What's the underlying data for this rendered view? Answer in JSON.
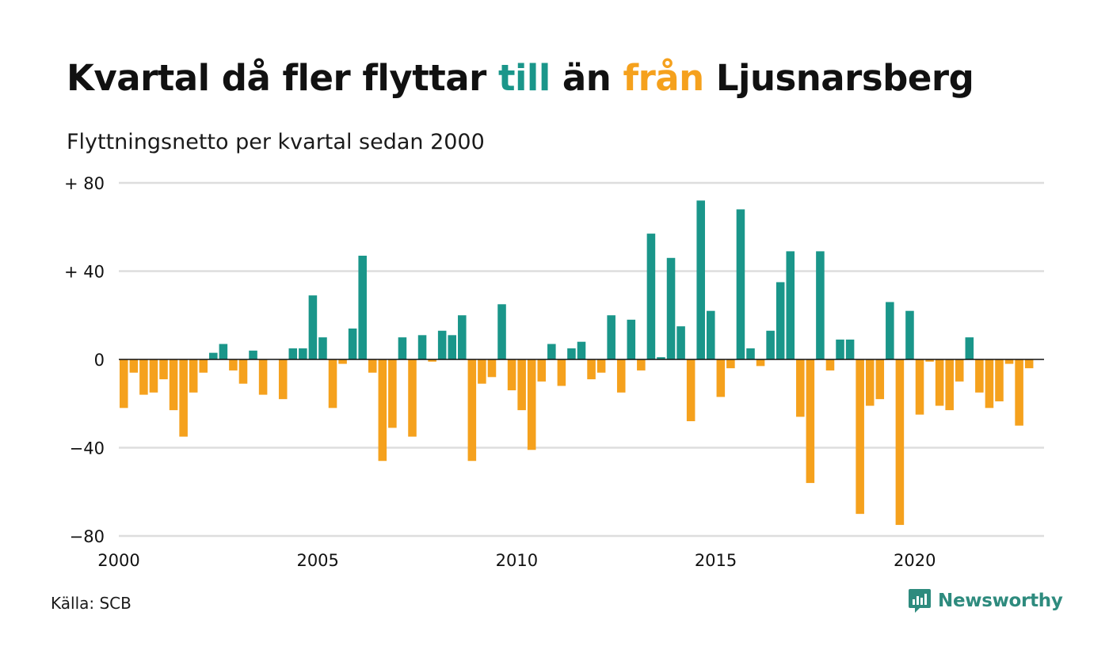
{
  "title": {
    "part1": "Kvartal då fler flyttar ",
    "till": "till",
    "part2": " än ",
    "fran": "från",
    "part3": " Ljusnarsberg"
  },
  "subtitle": "Flyttningsnetto per kvartal sedan 2000",
  "source": "Källa: SCB",
  "logo": {
    "text": "Newsworthy",
    "icon": "newsworthy-chart-icon"
  },
  "colors": {
    "positive": "#1a968a",
    "negative": "#f5a11d",
    "grid": "#dddddd",
    "text": "#111111"
  },
  "chart_data": {
    "type": "bar",
    "xlim": [
      2000,
      2023.25
    ],
    "ylim": [
      -80,
      80
    ],
    "y_ticks": [
      {
        "value": 80,
        "label": "+ 80"
      },
      {
        "value": 40,
        "label": "+ 40"
      },
      {
        "value": 0,
        "label": "0"
      },
      {
        "value": -40,
        "label": "−40"
      },
      {
        "value": -80,
        "label": "−80"
      }
    ],
    "x_ticks": [
      {
        "value": 2000,
        "label": "2000"
      },
      {
        "value": 2005,
        "label": "2005"
      },
      {
        "value": 2010,
        "label": "2010"
      },
      {
        "value": 2015,
        "label": "2015"
      },
      {
        "value": 2020,
        "label": "2020"
      }
    ],
    "grid": true,
    "categories": [
      "2000 Q1",
      "2000 Q2",
      "2000 Q3",
      "2000 Q4",
      "2001 Q1",
      "2001 Q2",
      "2001 Q3",
      "2001 Q4",
      "2002 Q1",
      "2002 Q2",
      "2002 Q3",
      "2002 Q4",
      "2003 Q1",
      "2003 Q2",
      "2003 Q3",
      "2003 Q4",
      "2004 Q1",
      "2004 Q2",
      "2004 Q3",
      "2004 Q4",
      "2005 Q1",
      "2005 Q2",
      "2005 Q3",
      "2005 Q4",
      "2006 Q1",
      "2006 Q2",
      "2006 Q3",
      "2006 Q4",
      "2007 Q1",
      "2007 Q2",
      "2007 Q3",
      "2007 Q4",
      "2008 Q1",
      "2008 Q2",
      "2008 Q3",
      "2008 Q4",
      "2009 Q1",
      "2009 Q2",
      "2009 Q3",
      "2009 Q4",
      "2010 Q1",
      "2010 Q2",
      "2010 Q3",
      "2010 Q4",
      "2011 Q1",
      "2011 Q2",
      "2011 Q3",
      "2011 Q4",
      "2012 Q1",
      "2012 Q2",
      "2012 Q3",
      "2012 Q4",
      "2013 Q1",
      "2013 Q2",
      "2013 Q3",
      "2013 Q4",
      "2014 Q1",
      "2014 Q2",
      "2014 Q3",
      "2014 Q4",
      "2015 Q1",
      "2015 Q2",
      "2015 Q3",
      "2015 Q4",
      "2016 Q1",
      "2016 Q2",
      "2016 Q3",
      "2016 Q4",
      "2017 Q1",
      "2017 Q2",
      "2017 Q3",
      "2017 Q4",
      "2018 Q1",
      "2018 Q2",
      "2018 Q3",
      "2018 Q4",
      "2019 Q1",
      "2019 Q2",
      "2019 Q3",
      "2019 Q4",
      "2020 Q1",
      "2020 Q2",
      "2020 Q3",
      "2020 Q4",
      "2021 Q1",
      "2021 Q2",
      "2021 Q3",
      "2021 Q4",
      "2022 Q1",
      "2022 Q2",
      "2022 Q3",
      "2022 Q4",
      "2023 Q1"
    ],
    "values": [
      -22,
      -6,
      -16,
      -15,
      -9,
      -23,
      -35,
      -15,
      -6,
      3,
      7,
      -5,
      -11,
      4,
      -16,
      0,
      -18,
      5,
      5,
      29,
      10,
      -22,
      -2,
      14,
      47,
      -6,
      -46,
      -31,
      10,
      -35,
      11,
      -1,
      13,
      11,
      20,
      -46,
      -11,
      -8,
      25,
      -14,
      -23,
      -41,
      -10,
      7,
      -12,
      5,
      8,
      -9,
      -6,
      20,
      -15,
      18,
      -5,
      57,
      1,
      46,
      15,
      -28,
      72,
      22,
      -17,
      -4,
      68,
      5,
      -3,
      13,
      35,
      49,
      -26,
      -56,
      49,
      -5,
      9,
      9,
      -70,
      -21,
      -18,
      26,
      -75,
      22,
      -25,
      -1,
      -21,
      -23,
      -10,
      10,
      -15,
      -22,
      -19,
      -2,
      -30,
      -4,
      0
    ]
  }
}
